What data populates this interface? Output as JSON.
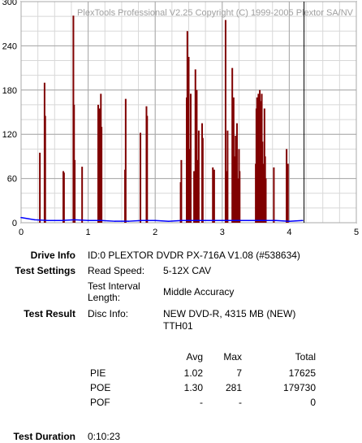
{
  "chart_data": {
    "type": "bar",
    "title": "PlexTools Professional V2.25 Copyright (C) 1999-2005 Plextor SA/NV",
    "xlim": [
      0,
      5
    ],
    "ylim": [
      0,
      300
    ],
    "x_ticks": [
      0,
      1,
      2,
      3,
      4,
      5
    ],
    "y_ticks": [
      0,
      60,
      120,
      180,
      240,
      300
    ],
    "grid": true,
    "marker_x": 4.22,
    "series": [
      {
        "name": "PIE",
        "color": "#0000ff",
        "x": [
          0.0,
          0.2,
          0.4,
          0.6,
          0.8,
          1.0,
          1.2,
          1.4,
          1.6,
          1.8,
          2.0,
          2.2,
          2.4,
          2.6,
          2.8,
          3.0,
          3.2,
          3.4,
          3.6,
          3.8,
          4.0,
          4.2
        ],
        "values": [
          7,
          4,
          3,
          3,
          4,
          3,
          3,
          2,
          2,
          3,
          3,
          2,
          3,
          3,
          3,
          3,
          3,
          3,
          3,
          3,
          2,
          3
        ]
      },
      {
        "name": "POE",
        "color": "#800000",
        "x": [
          0.28,
          0.35,
          0.36,
          0.63,
          0.64,
          0.78,
          0.79,
          0.8,
          0.91,
          1.15,
          1.17,
          1.19,
          1.2,
          1.55,
          1.56,
          1.78,
          1.87,
          1.88,
          2.38,
          2.39,
          2.47,
          2.48,
          2.5,
          2.52,
          2.53,
          2.58,
          2.6,
          2.62,
          2.64,
          2.65,
          2.7,
          2.71,
          2.86,
          2.88,
          3.05,
          3.06,
          3.08,
          3.15,
          3.16,
          3.17,
          3.18,
          3.2,
          3.22,
          3.23,
          3.25,
          3.26,
          3.5,
          3.51,
          3.52,
          3.53,
          3.54,
          3.55,
          3.56,
          3.57,
          3.58,
          3.59,
          3.6,
          3.62,
          3.63,
          3.64,
          3.65,
          3.77,
          3.96,
          3.98
        ],
        "values": [
          95,
          190,
          145,
          70,
          68,
          281,
          160,
          85,
          76,
          160,
          155,
          175,
          130,
          72,
          168,
          122,
          158,
          145,
          55,
          85,
          170,
          260,
          225,
          100,
          175,
          70,
          208,
          180,
          85,
          125,
          135,
          115,
          75,
          72,
          275,
          70,
          125,
          210,
          150,
          170,
          90,
          118,
          135,
          60,
          100,
          70,
          80,
          155,
          170,
          120,
          175,
          90,
          180,
          165,
          135,
          175,
          110,
          80,
          155,
          90,
          60,
          75,
          100,
          80
        ]
      }
    ]
  },
  "info": {
    "drive_label": "Drive Info",
    "drive_value": "ID:0 PLEXTOR DVDR PX-716A V1.08 (#538634)",
    "settings_label": "Test Settings",
    "read_speed_label": "Read Speed:",
    "read_speed_value": "5-12X CAV",
    "interval_label_1": "Test Interval",
    "interval_label_2": "Length:",
    "interval_value": "Middle Accuracy",
    "result_label": "Test Result",
    "disc_label": "Disc Info:",
    "disc_value_1": "NEW DVD-R, 4315 MB (NEW)",
    "disc_value_2": "TTH01",
    "duration_label": "Test Duration",
    "duration_value": "0:10:23"
  },
  "table": {
    "headers": [
      "Avg",
      "Max",
      "Total"
    ],
    "rows": [
      {
        "name": "PIE",
        "avg": "1.02",
        "max": "7",
        "total": "17625"
      },
      {
        "name": "POE",
        "avg": "1.30",
        "max": "281",
        "total": "179730"
      },
      {
        "name": "POF",
        "avg": "-",
        "max": "-",
        "total": "0"
      }
    ]
  }
}
